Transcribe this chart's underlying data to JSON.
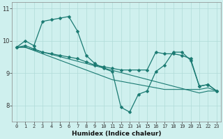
{
  "xlabel": "Humidex (Indice chaleur)",
  "bg_color": "#cff0ee",
  "grid_color": "#b0dbd8",
  "line_color": "#1a7a72",
  "series": [
    {
      "y": [
        9.8,
        10.0,
        9.85,
        10.6,
        10.65,
        10.7,
        10.75,
        10.3,
        9.55,
        9.3,
        9.15,
        9.05,
        7.95,
        7.8,
        8.35,
        8.45,
        9.05,
        9.25,
        9.65,
        9.65,
        9.4,
        8.6,
        8.65,
        8.45
      ],
      "marker": "D",
      "ms": 2.5,
      "lw": 0.9
    },
    {
      "y": [
        9.8,
        9.85,
        9.75,
        9.65,
        9.6,
        9.55,
        9.5,
        9.45,
        9.35,
        9.25,
        9.2,
        9.15,
        9.1,
        9.1,
        9.1,
        9.1,
        9.65,
        9.6,
        9.6,
        9.55,
        9.45,
        8.6,
        8.65,
        8.45
      ],
      "marker": "D",
      "ms": 2.5,
      "lw": 0.9
    },
    {
      "y": [
        9.8,
        9.8,
        9.7,
        9.6,
        9.5,
        9.4,
        9.3,
        9.2,
        9.1,
        9.0,
        8.9,
        8.8,
        8.75,
        8.7,
        8.65,
        8.6,
        8.55,
        8.5,
        8.5,
        8.5,
        8.5,
        8.5,
        8.55,
        8.45
      ],
      "marker": null,
      "ms": 0,
      "lw": 0.8
    },
    {
      "y": [
        9.8,
        9.8,
        9.72,
        9.65,
        9.58,
        9.51,
        9.44,
        9.37,
        9.3,
        9.23,
        9.16,
        9.09,
        9.02,
        8.95,
        8.88,
        8.81,
        8.74,
        8.67,
        8.6,
        8.53,
        8.46,
        8.39,
        8.45,
        8.45
      ],
      "marker": null,
      "ms": 0,
      "lw": 0.8
    }
  ],
  "xlim": [
    -0.5,
    23.5
  ],
  "ylim": [
    7.5,
    11.2
  ],
  "yticks": [
    8,
    9,
    10,
    11
  ],
  "xticks": [
    0,
    1,
    2,
    3,
    4,
    5,
    6,
    7,
    8,
    9,
    10,
    11,
    12,
    13,
    14,
    15,
    16,
    17,
    18,
    19,
    20,
    21,
    22,
    23
  ]
}
